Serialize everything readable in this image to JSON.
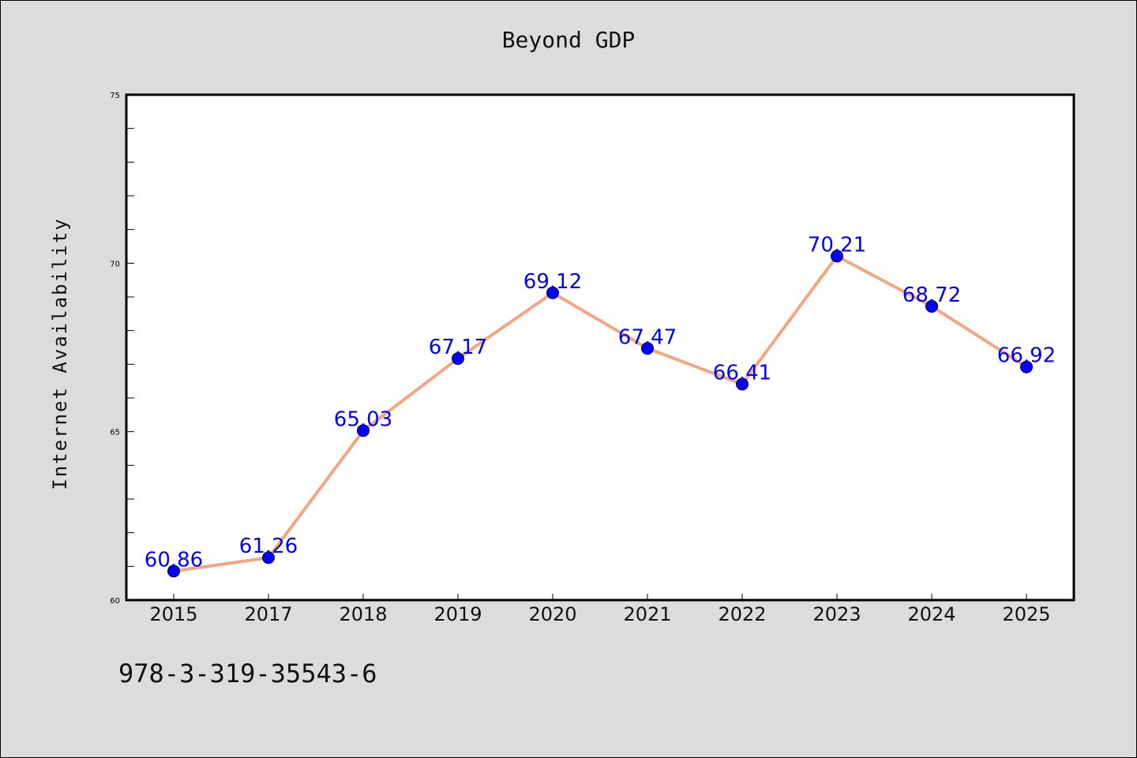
{
  "chart_data": {
    "type": "line",
    "title": "Beyond GDP",
    "xlabel": "",
    "ylabel": "Internet Availability",
    "categories": [
      "2015",
      "2017",
      "2018",
      "2019",
      "2020",
      "2021",
      "2022",
      "2023",
      "2024",
      "2025"
    ],
    "series": [
      {
        "values": [
          60.86,
          61.26,
          65.03,
          67.17,
          69.12,
          67.47,
          66.41,
          70.21,
          68.72,
          66.92
        ],
        "labels": [
          "60.86",
          "61.26",
          "65.03",
          "67.17",
          "69.12",
          "67.47",
          "66.41",
          "70.21",
          "68.72",
          "66.92"
        ],
        "line_color": "#f4a582",
        "marker_color": "#0000ff",
        "label_color": "#0000ff"
      }
    ],
    "ylim": [
      60,
      75
    ],
    "yticks": [
      "60",
      "65",
      "70",
      "75"
    ],
    "grid": false,
    "legend": "none"
  },
  "footer": {
    "code": "978-3-319-35543-6"
  }
}
